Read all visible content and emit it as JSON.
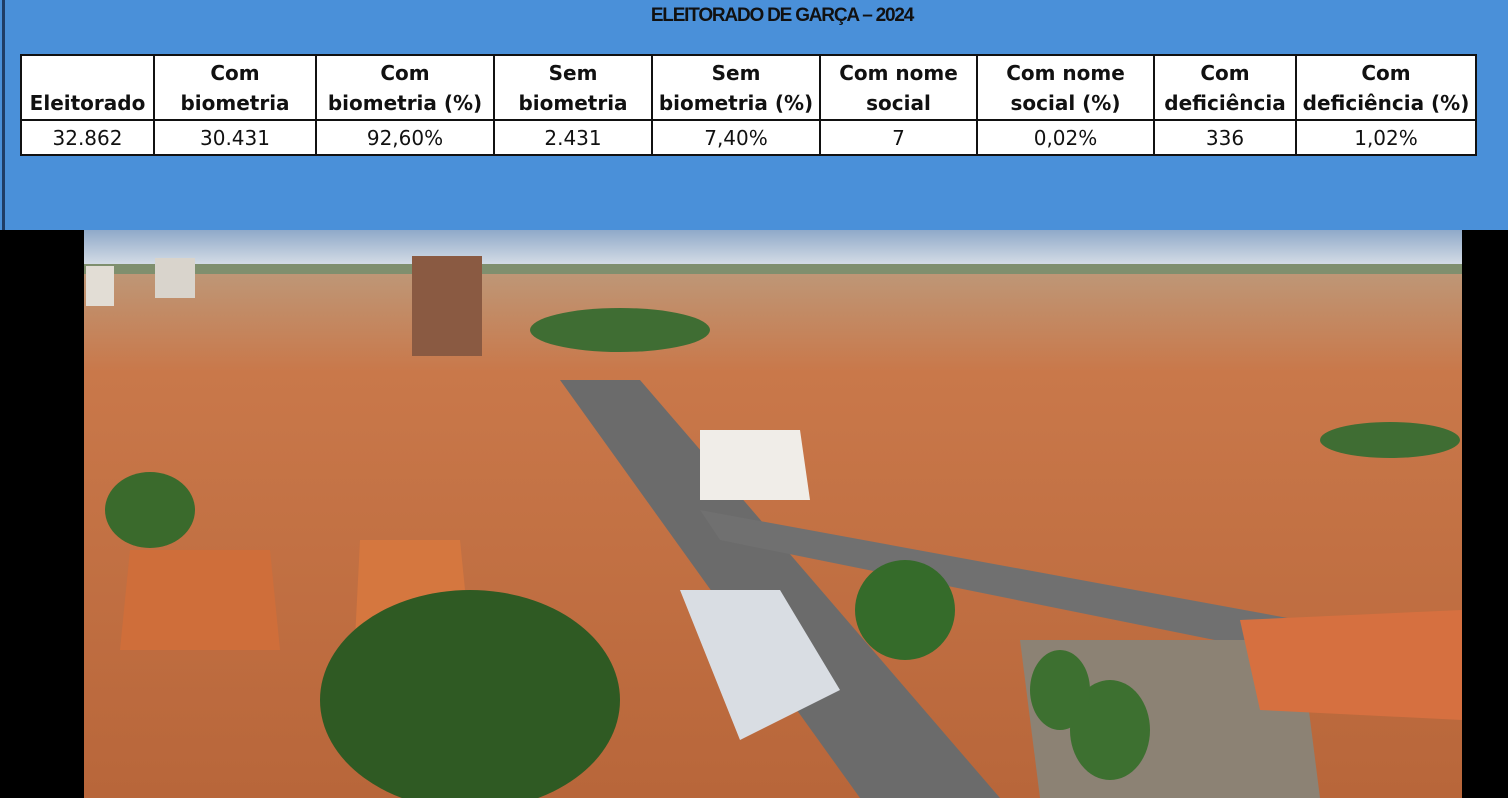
{
  "title": "ELEITORADO DE GARÇA – 2024",
  "table": {
    "headers": [
      [
        "Eleitorado"
      ],
      [
        "Com",
        "biometria"
      ],
      [
        "Com",
        "biometria (%)"
      ],
      [
        "Sem",
        "biometria"
      ],
      [
        "Sem",
        "biometria (%)"
      ],
      [
        "Com nome",
        "social"
      ],
      [
        "Com nome",
        "social (%)"
      ],
      [
        "Com",
        "deficiência"
      ],
      [
        "Com",
        "deficiência (%)"
      ]
    ],
    "rows": [
      [
        "32.862",
        "30.431",
        "92,60%",
        "2.431",
        "7,40%",
        "7",
        "0,02%",
        "336",
        "1,02%"
      ]
    ]
  }
}
